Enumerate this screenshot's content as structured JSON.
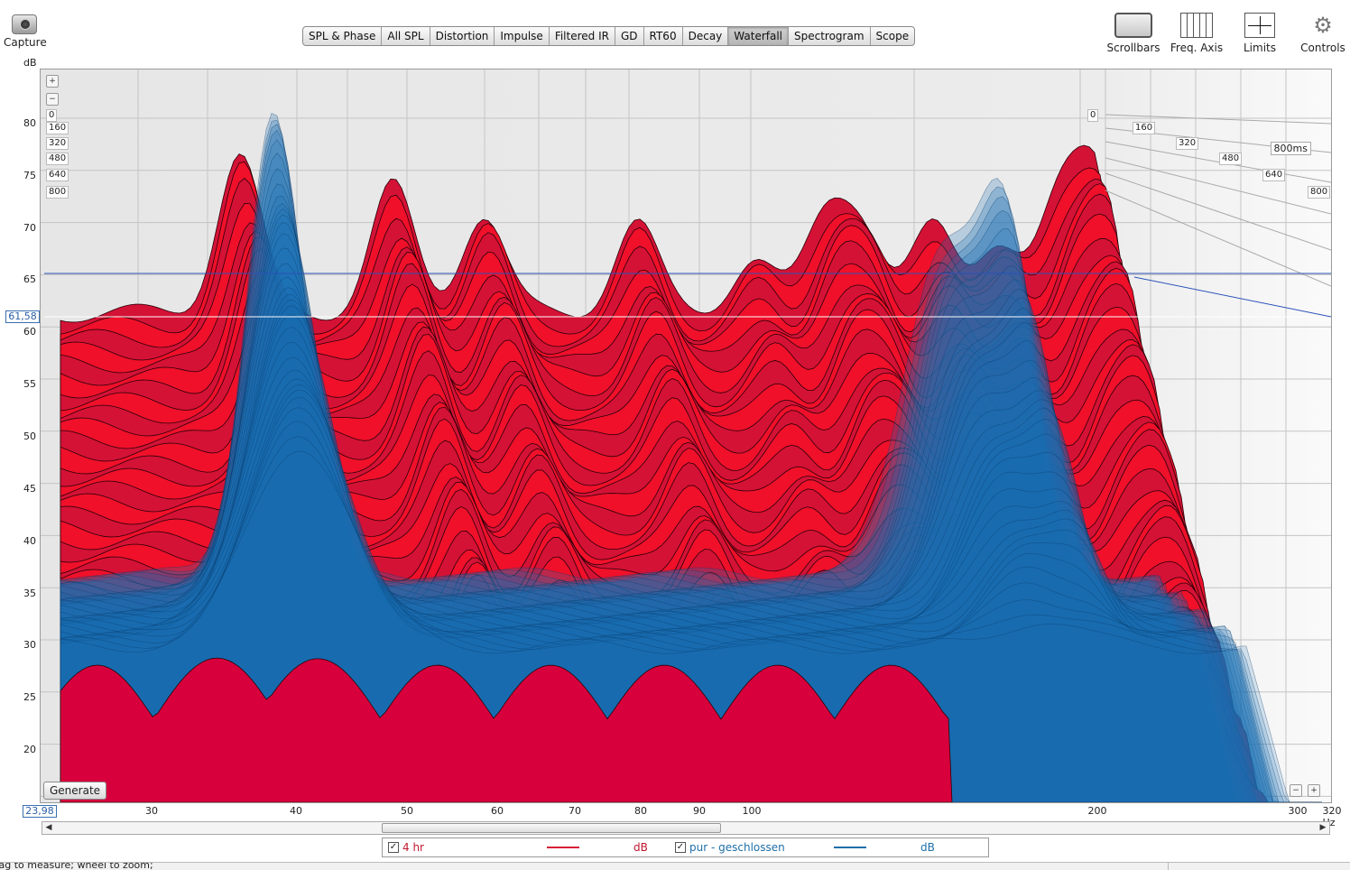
{
  "toolbar": {
    "capture_label": "Capture",
    "tabs": [
      "SPL & Phase",
      "All SPL",
      "Distortion",
      "Impulse",
      "Filtered IR",
      "GD",
      "RT60",
      "Decay",
      "Waterfall",
      "Spectrogram",
      "Scope"
    ],
    "active_tab": "Waterfall",
    "tools": [
      {
        "label": "Scrollbars",
        "icon": "scrollbars-icon"
      },
      {
        "label": "Freq. Axis",
        "icon": "freq-axis-icon"
      },
      {
        "label": "Limits",
        "icon": "limits-icon"
      },
      {
        "label": "Controls",
        "icon": "gear-icon"
      }
    ]
  },
  "plot": {
    "y_unit": "dB",
    "y_ticks": [
      "80",
      "75",
      "70",
      "65",
      "60",
      "55",
      "50",
      "45",
      "40",
      "35",
      "30",
      "25",
      "20"
    ],
    "y_cursor_value": "61,58",
    "y_min_value": "23,98",
    "x_ticks": [
      "30",
      "40",
      "50",
      "60",
      "70",
      "80",
      "90",
      "100",
      "200",
      "300",
      "320 Hz"
    ],
    "time_labels": [
      "0",
      "160",
      "320",
      "480",
      "640",
      "800"
    ],
    "time_max": "800ms",
    "generate_label": "Generate"
  },
  "legend": {
    "items": [
      {
        "checked": "✓",
        "name": "4 hr",
        "unit": "dB",
        "color": "#d8203a"
      },
      {
        "checked": "✓",
        "name": "pur - geschlossen",
        "unit": "dB",
        "color": "#1f6fa8"
      }
    ]
  },
  "status": {
    "text": "rag to measure; wheel to zoom;"
  },
  "colors": {
    "red_series": "#f0102a",
    "blue_series": "#1a6fb5",
    "plot_background": "#ededed"
  }
}
